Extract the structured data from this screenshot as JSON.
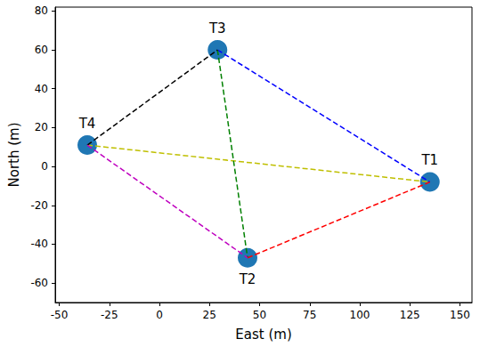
{
  "chart_data": {
    "type": "scatter",
    "x_label": "East (m)",
    "y_label": "North (m)",
    "point_labels": [
      "T1",
      "T2",
      "T3",
      "T4"
    ],
    "x": [
      135,
      44,
      29,
      -36
    ],
    "values": [
      -8,
      -47,
      60,
      11
    ],
    "color": "#1f77b4",
    "marker": "circle",
    "lines": [
      {
        "from": "T3",
        "to": "T1",
        "color": "#0000ff",
        "line_style": "dashed"
      },
      {
        "from": "T2",
        "to": "T1",
        "color": "#ff0000",
        "line_style": "dashed"
      },
      {
        "from": "T4",
        "to": "T1",
        "color": "#bfbf00",
        "line_style": "dashed"
      },
      {
        "from": "T3",
        "to": "T2",
        "color": "#008000",
        "line_style": "dashed"
      },
      {
        "from": "T4",
        "to": "T3",
        "color": "#000000",
        "line_style": "dashed"
      },
      {
        "from": "T4",
        "to": "T2",
        "color": "#bf00bf",
        "line_style": "dashed"
      }
    ],
    "xlim": [
      -52,
      156
    ],
    "xticks": [
      -50,
      -25,
      0,
      25,
      50,
      75,
      100,
      125,
      150
    ],
    "ylim": [
      -70,
      82
    ],
    "yticks": [
      -60,
      -40,
      -20,
      0,
      20,
      40,
      60,
      80
    ],
    "grid": false
  }
}
